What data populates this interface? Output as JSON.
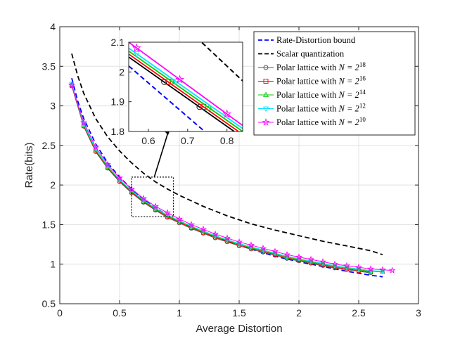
{
  "chart_data": {
    "type": "line",
    "title": "",
    "xlabel": "Average Distortion",
    "ylabel": "Rate(bits)",
    "xlim": [
      0,
      3
    ],
    "ylim": [
      0.5,
      4
    ],
    "x_ticks": [
      "0",
      "0.5",
      "1",
      "1.5",
      "2",
      "2.5",
      "3"
    ],
    "y_ticks": [
      "0.5",
      "1",
      "1.5",
      "2",
      "2.5",
      "3",
      "3.5",
      "4"
    ],
    "grid": true,
    "legend_position": "top-right",
    "series": [
      {
        "name": "Rate-Distortion bound",
        "style": "dashed",
        "color": "#0000ff",
        "marker": "none",
        "x": [
          0.1,
          0.15,
          0.2,
          0.3,
          0.4,
          0.5,
          0.6,
          0.7,
          0.8,
          0.9,
          1.0,
          1.2,
          1.4,
          1.6,
          1.8,
          2.0,
          2.2,
          2.4,
          2.6,
          2.7
        ],
        "y": [
          3.35,
          3.06,
          2.84,
          2.52,
          2.28,
          2.1,
          1.95,
          1.82,
          1.71,
          1.62,
          1.54,
          1.4,
          1.29,
          1.19,
          1.1,
          1.03,
          0.97,
          0.91,
          0.86,
          0.84
        ]
      },
      {
        "name": "Scalar quantization",
        "style": "dashed",
        "color": "#000000",
        "marker": "none",
        "x": [
          0.1,
          0.15,
          0.2,
          0.3,
          0.4,
          0.5,
          0.6,
          0.7,
          0.8,
          0.9,
          1.0,
          1.2,
          1.4,
          1.6,
          1.8,
          2.0,
          2.2,
          2.4,
          2.6,
          2.7
        ],
        "y": [
          3.66,
          3.38,
          3.16,
          2.84,
          2.61,
          2.43,
          2.28,
          2.15,
          2.04,
          1.95,
          1.87,
          1.73,
          1.61,
          1.51,
          1.43,
          1.36,
          1.29,
          1.23,
          1.17,
          1.12
        ]
      },
      {
        "name": "Polar lattice with N = 2^18",
        "style": "solid",
        "color": "#555555",
        "marker": "circle",
        "x": [
          0.1,
          0.2,
          0.3,
          0.4,
          0.5,
          0.6,
          0.7,
          0.8,
          0.9,
          1.0,
          1.1,
          1.2,
          1.3,
          1.4,
          1.5,
          1.6,
          1.7,
          1.8,
          1.9,
          2.0,
          2.1,
          2.2,
          2.3,
          2.4,
          2.5,
          2.6
        ],
        "y": [
          3.25,
          2.74,
          2.42,
          2.21,
          2.04,
          1.9,
          1.78,
          1.68,
          1.59,
          1.52,
          1.45,
          1.39,
          1.33,
          1.28,
          1.23,
          1.19,
          1.15,
          1.11,
          1.07,
          1.04,
          1.01,
          0.98,
          0.95,
          0.93,
          0.91,
          0.89
        ]
      },
      {
        "name": "Polar lattice with N = 2^16",
        "style": "solid",
        "color": "#ff0000",
        "marker": "square",
        "x": [
          0.1,
          0.2,
          0.3,
          0.4,
          0.5,
          0.6,
          0.7,
          0.8,
          0.9,
          1.0,
          1.1,
          1.2,
          1.3,
          1.4,
          1.5,
          1.6,
          1.7,
          1.8,
          1.9,
          2.0,
          2.1,
          2.2,
          2.3,
          2.4,
          2.5,
          2.6
        ],
        "y": [
          3.26,
          2.75,
          2.43,
          2.22,
          2.05,
          1.91,
          1.79,
          1.69,
          1.6,
          1.53,
          1.46,
          1.4,
          1.34,
          1.29,
          1.24,
          1.2,
          1.16,
          1.12,
          1.08,
          1.05,
          1.02,
          0.99,
          0.96,
          0.94,
          0.92,
          0.9
        ]
      },
      {
        "name": "Polar lattice with N = 2^14",
        "style": "solid",
        "color": "#00cc00",
        "marker": "triangle-up",
        "x": [
          0.1,
          0.2,
          0.3,
          0.4,
          0.5,
          0.6,
          0.7,
          0.8,
          0.9,
          1.0,
          1.1,
          1.2,
          1.3,
          1.4,
          1.5,
          1.6,
          1.7,
          1.8,
          1.9,
          2.0,
          2.1,
          2.2,
          2.3,
          2.4,
          2.5,
          2.6,
          2.7
        ],
        "y": [
          3.27,
          2.76,
          2.44,
          2.23,
          2.06,
          1.92,
          1.8,
          1.7,
          1.61,
          1.54,
          1.47,
          1.41,
          1.35,
          1.3,
          1.25,
          1.21,
          1.17,
          1.13,
          1.09,
          1.06,
          1.03,
          1.0,
          0.97,
          0.95,
          0.93,
          0.91,
          0.9
        ]
      },
      {
        "name": "Polar lattice with N = 2^12",
        "style": "solid",
        "color": "#00e5ff",
        "marker": "triangle-down",
        "x": [
          0.1,
          0.2,
          0.3,
          0.4,
          0.5,
          0.6,
          0.7,
          0.8,
          0.9,
          1.0,
          1.1,
          1.2,
          1.3,
          1.4,
          1.5,
          1.6,
          1.7,
          1.8,
          1.9,
          2.0,
          2.1,
          2.2,
          2.3,
          2.4,
          2.5,
          2.6,
          2.7
        ],
        "y": [
          3.28,
          2.77,
          2.46,
          2.24,
          2.07,
          1.93,
          1.81,
          1.71,
          1.62,
          1.55,
          1.48,
          1.42,
          1.36,
          1.31,
          1.26,
          1.22,
          1.18,
          1.14,
          1.1,
          1.07,
          1.04,
          1.01,
          0.98,
          0.96,
          0.94,
          0.92,
          0.91
        ]
      },
      {
        "name": "Polar lattice with N = 2^10",
        "style": "solid",
        "color": "#ff00ff",
        "marker": "pentagram",
        "x": [
          0.1,
          0.2,
          0.3,
          0.4,
          0.5,
          0.6,
          0.7,
          0.8,
          0.9,
          1.0,
          1.1,
          1.2,
          1.3,
          1.4,
          1.5,
          1.6,
          1.7,
          1.8,
          1.9,
          2.0,
          2.1,
          2.2,
          2.3,
          2.4,
          2.5,
          2.6,
          2.7,
          2.78
        ],
        "y": [
          3.26,
          2.79,
          2.48,
          2.26,
          2.09,
          1.95,
          1.83,
          1.73,
          1.65,
          1.57,
          1.5,
          1.44,
          1.38,
          1.33,
          1.28,
          1.24,
          1.2,
          1.16,
          1.12,
          1.09,
          1.06,
          1.03,
          1.0,
          0.98,
          0.96,
          0.94,
          0.93,
          0.92
        ]
      }
    ],
    "annotation": "dotted rectangle around x 0.6 to 0.95, y 1.6 to 2.1 with arrow pointing to zoomed inset",
    "inset": {
      "xlim": [
        0.55,
        0.84
      ],
      "ylim": [
        1.8,
        2.1
      ],
      "x_ticks": [
        "0.6",
        "0.7",
        "0.8"
      ],
      "y_ticks": [
        "1.8",
        "1.9",
        "2",
        "2.1"
      ],
      "series": [
        {
          "name": "Rate-Distortion bound",
          "color": "#0000ff",
          "style": "dashed",
          "x": [
            0.55,
            0.84
          ],
          "y": [
            2.02,
            1.69
          ],
          "marker_x": []
        },
        {
          "name": "Scalar quantization",
          "color": "#000000",
          "style": "dashed",
          "x": [
            0.55,
            0.84
          ],
          "y": [
            2.33,
            1.97
          ],
          "marker_x": []
        },
        {
          "name": "Polar lattice with N = 2^18",
          "color": "#000000",
          "style": "solid",
          "marker": "circle",
          "x": [
            0.55,
            0.84
          ],
          "y": [
            2.05,
            1.78
          ],
          "marker_x": [
            0.64,
            0.73
          ]
        },
        {
          "name": "Polar lattice with N = 2^16",
          "color": "#ff0000",
          "style": "solid",
          "marker": "square",
          "x": [
            0.55,
            0.84
          ],
          "y": [
            2.06,
            1.79
          ],
          "marker_x": [
            0.65,
            0.74
          ]
        },
        {
          "name": "Polar lattice with N = 2^14",
          "color": "#00cc00",
          "style": "solid",
          "marker": "triangle-up",
          "x": [
            0.55,
            0.84
          ],
          "y": [
            2.07,
            1.8
          ],
          "marker_x": [
            0.66,
            0.755
          ]
        },
        {
          "name": "Polar lattice with N = 2^12",
          "color": "#00e5ff",
          "style": "solid",
          "marker": "triangle-down",
          "x": [
            0.55,
            0.84
          ],
          "y": [
            2.08,
            1.81
          ],
          "marker_x": [
            0.57,
            0.67
          ]
        },
        {
          "name": "Polar lattice with N = 2^10",
          "color": "#ff00ff",
          "style": "solid",
          "marker": "pentagram",
          "x": [
            0.55,
            0.84
          ],
          "y": [
            2.1,
            1.82
          ],
          "marker_x": [
            0.57,
            0.68,
            0.8
          ]
        }
      ]
    },
    "legend": [
      {
        "label": "Rate-Distortion bound",
        "base": "",
        "exp": ""
      },
      {
        "label": "Scalar quantization",
        "base": "",
        "exp": ""
      },
      {
        "label": "Polar lattice with ",
        "base": "N = 2",
        "exp": "18"
      },
      {
        "label": "Polar lattice with ",
        "base": "N = 2",
        "exp": "16"
      },
      {
        "label": "Polar lattice with ",
        "base": "N = 2",
        "exp": "14"
      },
      {
        "label": "Polar lattice with ",
        "base": "N = 2",
        "exp": "12"
      },
      {
        "label": "Polar lattice with ",
        "base": "N = 2",
        "exp": "10"
      }
    ]
  }
}
